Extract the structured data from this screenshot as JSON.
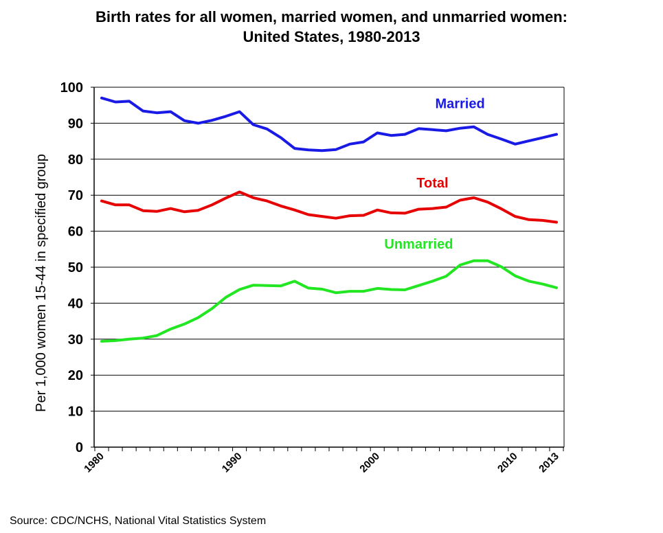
{
  "chart_data": {
    "type": "line",
    "title_lines": [
      "Birth rates for all women, married women, and unmarried women:",
      "United States, 1980-2013"
    ],
    "ylabel": "Per 1,000 women 15-44 in specified group",
    "xlabel": "",
    "ylim": [
      0,
      100
    ],
    "yticks": [
      0,
      10,
      20,
      30,
      40,
      50,
      60,
      70,
      80,
      90,
      100
    ],
    "xlim": [
      1980,
      2013
    ],
    "xtick_labels": [
      {
        "year": 1980,
        "label": "1980"
      },
      {
        "year": 1990,
        "label": "1990"
      },
      {
        "year": 2000,
        "label": "2000"
      },
      {
        "year": 2010,
        "label": "2010"
      },
      {
        "year": 2013,
        "label": "2013"
      }
    ],
    "grid": true,
    "x": [
      1980,
      1981,
      1982,
      1983,
      1984,
      1985,
      1986,
      1987,
      1988,
      1989,
      1990,
      1991,
      1992,
      1993,
      1994,
      1995,
      1996,
      1997,
      1998,
      1999,
      2000,
      2001,
      2002,
      2003,
      2004,
      2005,
      2006,
      2007,
      2008,
      2009,
      2010,
      2011,
      2012,
      2013
    ],
    "series": [
      {
        "name": "Married",
        "color": "#1a1ae6",
        "values": [
          97.0,
          95.9,
          96.1,
          93.4,
          92.9,
          93.2,
          90.7,
          90.0,
          90.8,
          91.9,
          93.2,
          89.6,
          88.4,
          86.0,
          83.0,
          82.6,
          82.4,
          82.7,
          84.2,
          84.8,
          87.3,
          86.6,
          86.9,
          88.5,
          88.2,
          87.9,
          88.6,
          89.0,
          86.9,
          85.6,
          84.2,
          85.1,
          86.0,
          86.9
        ],
        "label_text": "Married"
      },
      {
        "name": "Total",
        "color": "#e60000",
        "values": [
          68.4,
          67.3,
          67.3,
          65.7,
          65.5,
          66.3,
          65.4,
          65.8,
          67.3,
          69.2,
          70.9,
          69.3,
          68.4,
          67.0,
          65.9,
          64.6,
          64.1,
          63.6,
          64.3,
          64.4,
          65.9,
          65.1,
          65.0,
          66.1,
          66.3,
          66.7,
          68.6,
          69.3,
          68.1,
          66.2,
          64.1,
          63.2,
          63.0,
          62.5
        ],
        "label_text": "Total"
      },
      {
        "name": "Unmarried",
        "color": "#22e622",
        "values": [
          29.4,
          29.6,
          30.0,
          30.3,
          31.0,
          32.8,
          34.2,
          36.0,
          38.5,
          41.6,
          43.8,
          45.0,
          44.9,
          44.8,
          46.1,
          44.2,
          43.9,
          42.9,
          43.3,
          43.3,
          44.1,
          43.8,
          43.7,
          44.9,
          46.1,
          47.5,
          50.6,
          51.8,
          51.8,
          50.1,
          47.6,
          46.1,
          45.3,
          44.3
        ],
        "label_text": "Unmarried"
      }
    ]
  },
  "source": "Source: CDC/NCHS, National Vital Statistics System"
}
